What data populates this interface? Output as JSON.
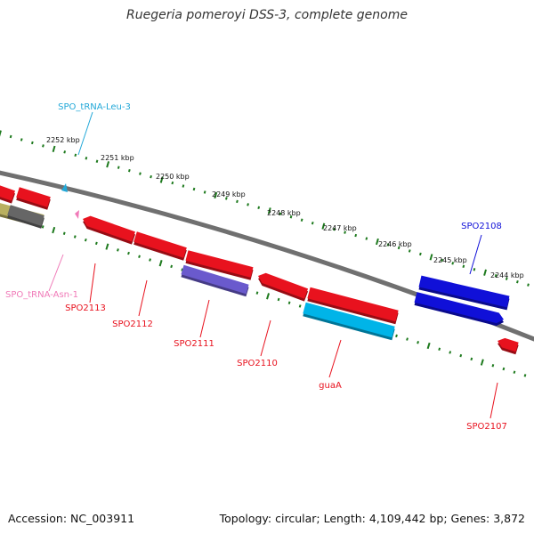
{
  "title": "Ruegeria pomeroyi DSS-3, complete genome",
  "footer": {
    "accession": "Accession: NC_003911",
    "topology": "Topology: circular; Length: 4,109,442 bp; Genes: 3,872"
  },
  "ruler": {
    "ticks": [
      "2252 kbp",
      "2251 kbp",
      "2250 kbp",
      "2249 kbp",
      "2248 kbp",
      "2247 kbp",
      "2246 kbp",
      "2245 kbp",
      "2244 kbp"
    ]
  },
  "features": {
    "labels": [
      "SPO_tRNA-Leu-3",
      "SPO_tRNA-Asn-1",
      "SPO2113",
      "SPO2112",
      "SPO2111",
      "SPO2110",
      "guaA",
      "SPO2108",
      "SPO2107"
    ],
    "colors": {
      "cds_red": "#e8121e",
      "cds_blue": "#1010d8",
      "cds_purple": "#6a5acd",
      "cds_cyan": "#00b4e8",
      "trna_leu": "#22a8d8",
      "trna_asn": "#f07ab8",
      "backbone": "#707070",
      "tick_green": "#1e7a1e"
    }
  }
}
